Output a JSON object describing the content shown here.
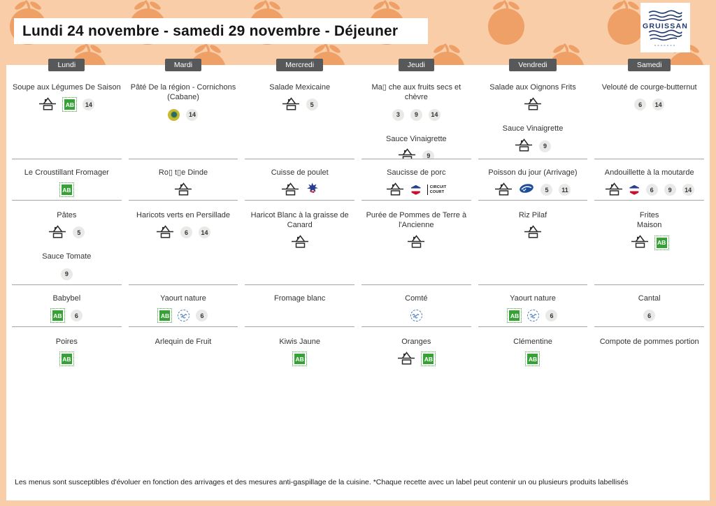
{
  "header": {
    "title": "Lundi 24 novembre - samedi 29 novembre  - Déjeuner",
    "logo_text": "GRUISSAN"
  },
  "colors": {
    "band_peach": "#f8cda8",
    "pear_orange": "#efa066",
    "badge_gray": "#57585a",
    "ab_green": "#36a235",
    "stamp_blue": "#4a7fc1",
    "fish_navy": "#1d4e9b",
    "flag_blue": "#24408e",
    "flag_red": "#c8102e",
    "cathare_yellow": "#c9b832",
    "cathare_teal": "#2d6b5f",
    "logo_navy": "#1e3a6e",
    "divider_gray": "#a5a5a5"
  },
  "icon_labels": {
    "ab": "AB",
    "circuit_court_line1": "CIRCUIT",
    "circuit_court_line2": "COURT"
  },
  "columns": [
    {
      "day": "Lundi",
      "rows": [
        [
          {
            "name": "Soupe aux Légumes De Saison",
            "icons": [
              "fait-maison",
              "ab-bio"
            ],
            "allergens": [
              "14"
            ]
          }
        ],
        [
          {
            "name": "Le Croustillant Fromager",
            "icons": [
              "ab-bio"
            ],
            "allergens": []
          }
        ],
        [
          {
            "name": "Pâtes",
            "icons": [
              "fait-maison"
            ],
            "allergens": [
              "5"
            ]
          },
          {
            "name": "Sauce Tomate",
            "icons": [],
            "allergens": [
              "9"
            ]
          }
        ],
        [
          {
            "name": "Babybel",
            "icons": [
              "ab-bio"
            ],
            "allergens": [
              "6"
            ]
          }
        ],
        [
          {
            "name": "Poires",
            "icons": [
              "ab-bio"
            ],
            "allergens": []
          }
        ]
      ]
    },
    {
      "day": "Mardi",
      "rows": [
        [
          {
            "name": "Pâté De la région - Cornichons (Cabane)",
            "icons": [
              "pays-cathare"
            ],
            "allergens": [
              "14"
            ]
          }
        ],
        [
          {
            "name": "Ro▯ t▯e Dinde",
            "icons": [
              "fait-maison"
            ],
            "allergens": []
          }
        ],
        [
          {
            "name": "Haricots verts en Persillade",
            "icons": [
              "fait-maison"
            ],
            "allergens": [
              "6",
              "14"
            ]
          }
        ],
        [
          {
            "name": "Yaourt nature",
            "icons": [
              "ab-bio",
              "produit-local"
            ],
            "allergens": [
              "6"
            ]
          }
        ],
        [
          {
            "name": "Arlequin de Fruit",
            "icons": [],
            "allergens": []
          }
        ]
      ]
    },
    {
      "day": "Mercredi",
      "rows": [
        [
          {
            "name": "Salade Mexicaine",
            "icons": [
              "fait-maison"
            ],
            "allergens": [
              "5"
            ]
          }
        ],
        [
          {
            "name": "Cuisse de poulet",
            "icons": [
              "fait-maison",
              "volaille-francaise"
            ],
            "allergens": []
          }
        ],
        [
          {
            "name": "Haricot Blanc à la graisse de Canard",
            "icons": [
              "fait-maison"
            ],
            "allergens": []
          }
        ],
        [
          {
            "name": "Fromage blanc",
            "icons": [],
            "allergens": []
          }
        ],
        [
          {
            "name": "Kiwis Jaune",
            "icons": [
              "ab-bio"
            ],
            "allergens": []
          }
        ]
      ]
    },
    {
      "day": "Jeudi",
      "rows": [
        [
          {
            "name": "Ma▯ che aux fruits secs et chèvre",
            "icons": [],
            "allergens": [
              "3",
              "9",
              "14"
            ]
          },
          {
            "name": "Sauce Vinaigrette",
            "icons": [
              "fait-maison"
            ],
            "allergens": [
              "9"
            ]
          }
        ],
        [
          {
            "name": "Saucisse de porc",
            "icons": [
              "fait-maison",
              "porc-francais",
              "circuit-court"
            ],
            "allergens": []
          }
        ],
        [
          {
            "name": "Purée de Pommes de Terre à l'Ancienne",
            "icons": [
              "fait-maison"
            ],
            "allergens": []
          }
        ],
        [
          {
            "name": "Comté",
            "icons": [
              "produit-local"
            ],
            "allergens": []
          }
        ],
        [
          {
            "name": "Oranges",
            "icons": [
              "fait-maison",
              "ab-bio"
            ],
            "allergens": []
          }
        ]
      ]
    },
    {
      "day": "Vendredi",
      "rows": [
        [
          {
            "name": "Salade aux Oignons Frits",
            "icons": [
              "fait-maison"
            ],
            "allergens": []
          },
          {
            "name": "Sauce Vinaigrette",
            "icons": [
              "fait-maison"
            ],
            "allergens": [
              "9"
            ]
          }
        ],
        [
          {
            "name": "Poisson du jour (Arrivage)",
            "icons": [
              "fait-maison",
              "peche-durable"
            ],
            "allergens": [
              "5",
              "11"
            ]
          }
        ],
        [
          {
            "name": "Riz Pilaf",
            "icons": [
              "fait-maison"
            ],
            "allergens": []
          }
        ],
        [
          {
            "name": "Yaourt nature",
            "icons": [
              "ab-bio",
              "produit-local"
            ],
            "allergens": [
              "6"
            ]
          }
        ],
        [
          {
            "name": "Clémentine",
            "icons": [
              "ab-bio"
            ],
            "allergens": []
          }
        ]
      ]
    },
    {
      "day": "Samedi",
      "rows": [
        [
          {
            "name": "Velouté de courge-butternut",
            "icons": [],
            "allergens": [
              "6",
              "14"
            ]
          }
        ],
        [
          {
            "name": "Andouillette à la moutarde",
            "icons": [
              "fait-maison",
              "porc-francais"
            ],
            "allergens": [
              "6",
              "9",
              "14"
            ]
          }
        ],
        [
          {
            "name": "Frites\nMaison",
            "icons": [
              "fait-maison",
              "ab-bio"
            ],
            "allergens": []
          }
        ],
        [
          {
            "name": "Cantal",
            "icons": [],
            "allergens": [
              "6"
            ]
          }
        ],
        [
          {
            "name": "Compote de pommes portion",
            "icons": [],
            "allergens": []
          }
        ]
      ]
    }
  ],
  "footer": {
    "disclaimer": "Les menus sont susceptibles d'évoluer en fonction des arrivages et des mesures anti-gaspillage de la cuisine. *Chaque recette avec un label peut contenir un ou plusieurs produits labellisés"
  }
}
